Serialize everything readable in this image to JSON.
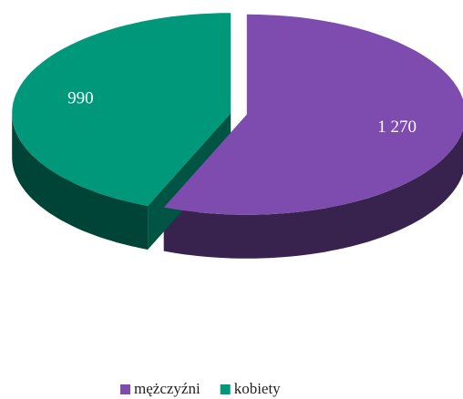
{
  "chart_data": {
    "type": "pie",
    "categories": [
      "mężczyźni",
      "kobiety"
    ],
    "values": [
      1270,
      990
    ],
    "value_labels": [
      "1 270",
      "990"
    ],
    "colors": [
      "#7d4cae",
      "#00987a"
    ],
    "legend": "bottom"
  }
}
